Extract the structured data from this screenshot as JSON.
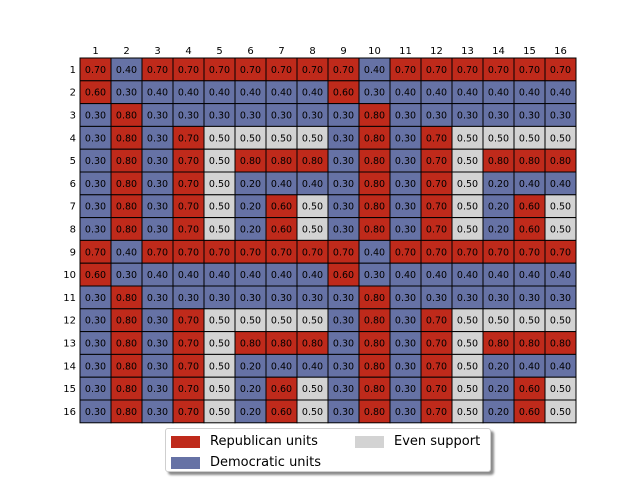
{
  "chart_data": {
    "type": "heatmap",
    "title": "",
    "column_labels": [
      "1",
      "2",
      "3",
      "4",
      "5",
      "6",
      "7",
      "8",
      "9",
      "10",
      "11",
      "12",
      "13",
      "14",
      "15",
      "16"
    ],
    "row_labels": [
      "1",
      "2",
      "3",
      "4",
      "5",
      "6",
      "7",
      "8",
      "9",
      "10",
      "11",
      "12",
      "13",
      "14",
      "15",
      "16"
    ],
    "values": [
      [
        0.7,
        0.4,
        0.7,
        0.7,
        0.7,
        0.7,
        0.7,
        0.7,
        0.7,
        0.4,
        0.7,
        0.7,
        0.7,
        0.7,
        0.7,
        0.7
      ],
      [
        0.6,
        0.3,
        0.4,
        0.4,
        0.4,
        0.4,
        0.4,
        0.4,
        0.6,
        0.3,
        0.4,
        0.4,
        0.4,
        0.4,
        0.4,
        0.4
      ],
      [
        0.3,
        0.8,
        0.3,
        0.3,
        0.3,
        0.3,
        0.3,
        0.3,
        0.3,
        0.8,
        0.3,
        0.3,
        0.3,
        0.3,
        0.3,
        0.3
      ],
      [
        0.3,
        0.8,
        0.3,
        0.7,
        0.5,
        0.5,
        0.5,
        0.5,
        0.3,
        0.8,
        0.3,
        0.7,
        0.5,
        0.5,
        0.5,
        0.5
      ],
      [
        0.3,
        0.8,
        0.3,
        0.7,
        0.5,
        0.8,
        0.8,
        0.8,
        0.3,
        0.8,
        0.3,
        0.7,
        0.5,
        0.8,
        0.8,
        0.8
      ],
      [
        0.3,
        0.8,
        0.3,
        0.7,
        0.5,
        0.2,
        0.4,
        0.4,
        0.3,
        0.8,
        0.3,
        0.7,
        0.5,
        0.2,
        0.4,
        0.4
      ],
      [
        0.3,
        0.8,
        0.3,
        0.7,
        0.5,
        0.2,
        0.6,
        0.5,
        0.3,
        0.8,
        0.3,
        0.7,
        0.5,
        0.2,
        0.6,
        0.5
      ],
      [
        0.3,
        0.8,
        0.3,
        0.7,
        0.5,
        0.2,
        0.6,
        0.5,
        0.3,
        0.8,
        0.3,
        0.7,
        0.5,
        0.2,
        0.6,
        0.5
      ],
      [
        0.7,
        0.4,
        0.7,
        0.7,
        0.7,
        0.7,
        0.7,
        0.7,
        0.7,
        0.4,
        0.7,
        0.7,
        0.7,
        0.7,
        0.7,
        0.7
      ],
      [
        0.6,
        0.3,
        0.4,
        0.4,
        0.4,
        0.4,
        0.4,
        0.4,
        0.6,
        0.3,
        0.4,
        0.4,
        0.4,
        0.4,
        0.4,
        0.4
      ],
      [
        0.3,
        0.8,
        0.3,
        0.3,
        0.3,
        0.3,
        0.3,
        0.3,
        0.3,
        0.8,
        0.3,
        0.3,
        0.3,
        0.3,
        0.3,
        0.3
      ],
      [
        0.3,
        0.8,
        0.3,
        0.7,
        0.5,
        0.5,
        0.5,
        0.5,
        0.3,
        0.8,
        0.3,
        0.7,
        0.5,
        0.5,
        0.5,
        0.5
      ],
      [
        0.3,
        0.8,
        0.3,
        0.7,
        0.5,
        0.8,
        0.8,
        0.8,
        0.3,
        0.8,
        0.3,
        0.7,
        0.5,
        0.8,
        0.8,
        0.8
      ],
      [
        0.3,
        0.8,
        0.3,
        0.7,
        0.5,
        0.2,
        0.4,
        0.4,
        0.3,
        0.8,
        0.3,
        0.7,
        0.5,
        0.2,
        0.4,
        0.4
      ],
      [
        0.3,
        0.8,
        0.3,
        0.7,
        0.5,
        0.2,
        0.6,
        0.5,
        0.3,
        0.8,
        0.3,
        0.7,
        0.5,
        0.2,
        0.6,
        0.5
      ],
      [
        0.3,
        0.8,
        0.3,
        0.7,
        0.5,
        0.2,
        0.6,
        0.5,
        0.3,
        0.8,
        0.3,
        0.7,
        0.5,
        0.2,
        0.6,
        0.5
      ]
    ],
    "colors": {
      "republican": "#bf2a1b",
      "democratic": "#6672a5",
      "even": "#d3d3d3"
    },
    "color_rule": "red if value > 0.5, blue if value < 0.5, gray if value = 0.5",
    "legend": {
      "placement": "lower-center",
      "entries": [
        {
          "label": "Republican units",
          "color": "#bf2a1b"
        },
        {
          "label": "Democratic units",
          "color": "#6672a5"
        },
        {
          "label": "Even support",
          "color": "#d3d3d3"
        }
      ]
    }
  }
}
